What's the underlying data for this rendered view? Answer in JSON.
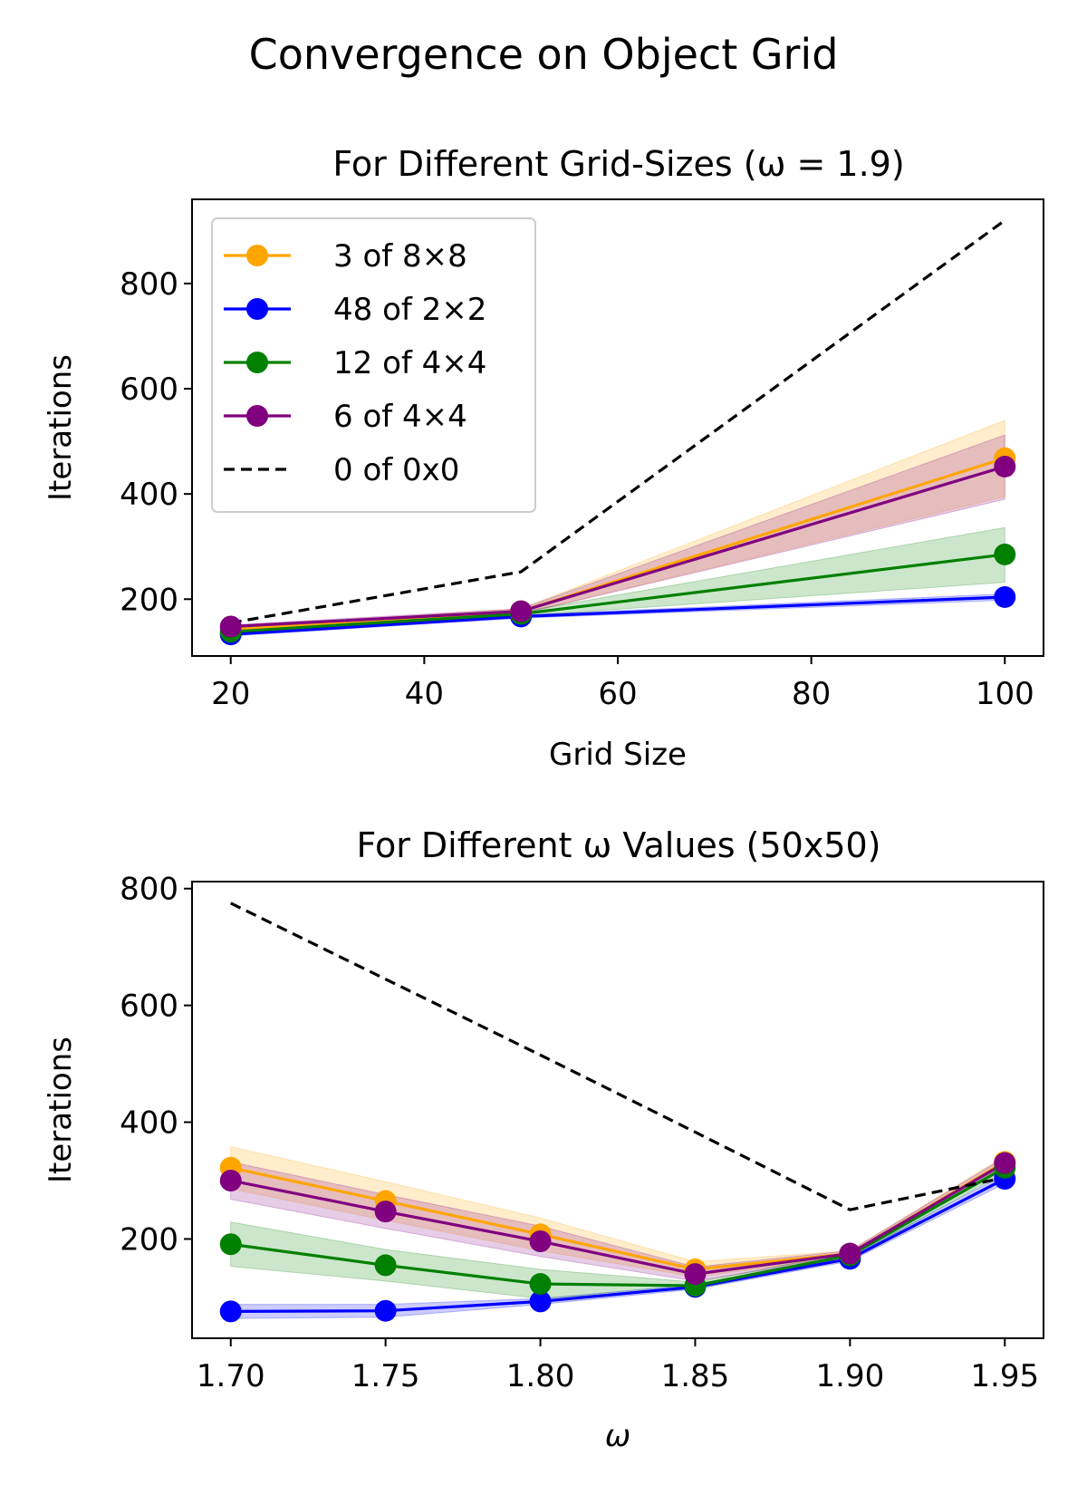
{
  "figure": {
    "suptitle": "Convergence on Object Grid"
  },
  "chart_data": [
    {
      "type": "line",
      "title": "For Different Grid-Sizes (ω = 1.9)",
      "xlabel": "Grid Size",
      "ylabel": "Iterations",
      "x": [
        20,
        50,
        100
      ],
      "xlim": [
        16,
        104
      ],
      "ylim": [
        92,
        960
      ],
      "xticks": [
        20,
        40,
        60,
        80,
        100
      ],
      "xtick_labels": [
        "20",
        "40",
        "60",
        "80",
        "100"
      ],
      "yticks": [
        200,
        400,
        600,
        800
      ],
      "ytick_labels": [
        "200",
        "400",
        "600",
        "800"
      ],
      "legend": "upper left",
      "grid": false,
      "series": [
        {
          "name": "3 of 8×8",
          "color": "#FFA500",
          "style": "solid-marker",
          "values": [
            143,
            177,
            468
          ],
          "lower": [
            140,
            172,
            395
          ],
          "upper": [
            146,
            182,
            540
          ]
        },
        {
          "name": "48 of 2×2",
          "color": "#0000FF",
          "style": "solid-marker",
          "values": [
            133,
            167,
            204
          ],
          "lower": [
            130,
            164,
            198
          ],
          "upper": [
            136,
            170,
            210
          ]
        },
        {
          "name": "12 of 4×4",
          "color": "#008000",
          "style": "solid-marker",
          "values": [
            138,
            172,
            285
          ],
          "lower": [
            135,
            168,
            232
          ],
          "upper": [
            141,
            176,
            336
          ]
        },
        {
          "name": "6 of 4×4",
          "color": "#800080",
          "style": "solid-marker",
          "values": [
            148,
            177,
            452
          ],
          "lower": [
            145,
            172,
            390
          ],
          "upper": [
            151,
            182,
            512
          ]
        },
        {
          "name": "0 of 0x0",
          "color": "#000000",
          "style": "dashed",
          "values": [
            155,
            252,
            920
          ]
        }
      ]
    },
    {
      "type": "line",
      "title": "For Different ω Values (50x50)",
      "xlabel": "ω",
      "ylabel": "Iterations",
      "x": [
        1.7,
        1.75,
        1.8,
        1.85,
        1.9,
        1.95
      ],
      "xlim": [
        1.6875,
        1.9625
      ],
      "ylim": [
        30,
        812
      ],
      "xticks": [
        1.7,
        1.75,
        1.8,
        1.85,
        1.9,
        1.95
      ],
      "xtick_labels": [
        "1.70",
        "1.75",
        "1.80",
        "1.85",
        "1.90",
        "1.95"
      ],
      "yticks": [
        200,
        400,
        600,
        800
      ],
      "ytick_labels": [
        "200",
        "400",
        "600",
        "800"
      ],
      "grid": false,
      "series": [
        {
          "name": "3 of 8×8",
          "color": "#FFA500",
          "style": "solid-marker",
          "values": [
            322,
            265,
            208,
            148,
            175,
            332
          ],
          "lower": [
            286,
            232,
            180,
            135,
            170,
            322
          ],
          "upper": [
            358,
            298,
            236,
            161,
            180,
            342
          ]
        },
        {
          "name": "48 of 2×2",
          "color": "#0000FF",
          "style": "solid-marker",
          "values": [
            76,
            77,
            93,
            118,
            166,
            303
          ],
          "lower": [
            64,
            66,
            88,
            114,
            162,
            295
          ],
          "upper": [
            88,
            88,
            98,
            122,
            170,
            311
          ]
        },
        {
          "name": "12 of 4×4",
          "color": "#008000",
          "style": "solid-marker",
          "values": [
            191,
            155,
            123,
            120,
            172,
            322
          ],
          "lower": [
            153,
            128,
            98,
            114,
            167,
            314
          ],
          "upper": [
            229,
            182,
            148,
            126,
            177,
            330
          ]
        },
        {
          "name": "6 of 4×4",
          "color": "#800080",
          "style": "solid-marker",
          "values": [
            300,
            247,
            196,
            140,
            175,
            330
          ],
          "lower": [
            268,
            218,
            170,
            128,
            170,
            320
          ],
          "upper": [
            332,
            276,
            222,
            152,
            180,
            340
          ]
        },
        {
          "name": "0 of 0x0",
          "color": "#000000",
          "style": "dashed",
          "values": [
            775,
            645,
            515,
            383,
            250,
            305
          ]
        }
      ]
    }
  ]
}
